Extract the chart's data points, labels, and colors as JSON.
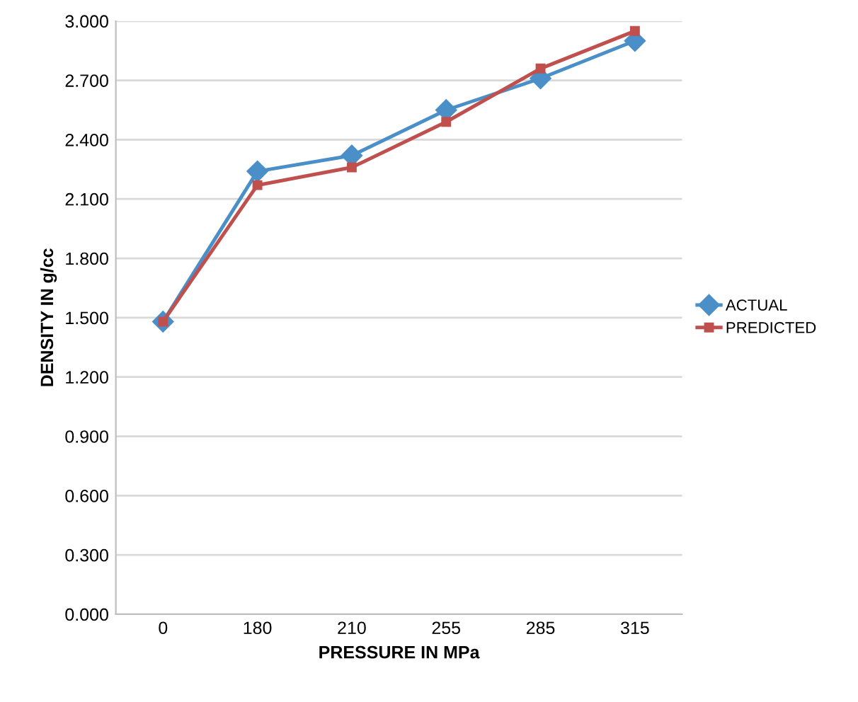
{
  "chart_data": {
    "type": "line",
    "xlabel": "PRESSURE IN MPa",
    "ylabel": "DENSITY IN g/cc",
    "categories": [
      "0",
      "180",
      "210",
      "255",
      "285",
      "315"
    ],
    "series": [
      {
        "name": "ACTUAL",
        "color": "#4a8fc7",
        "values": [
          1.48,
          2.24,
          2.32,
          2.55,
          2.71,
          2.9
        ],
        "marker": "diamond"
      },
      {
        "name": "PREDICTED",
        "color": "#c0504d",
        "values": [
          1.48,
          2.17,
          2.26,
          2.49,
          2.76,
          2.95
        ],
        "marker": "square"
      }
    ],
    "ylim": [
      0,
      3
    ],
    "yticks": [
      {
        "value": 0,
        "label": "0.000"
      },
      {
        "value": 0.3,
        "label": "0.300"
      },
      {
        "value": 0.6,
        "label": "0.600"
      },
      {
        "value": 0.9,
        "label": "0.900"
      },
      {
        "value": 1.2,
        "label": "1.200"
      },
      {
        "value": 1.5,
        "label": "1.500"
      },
      {
        "value": 1.8,
        "label": "1.800"
      },
      {
        "value": 2.1,
        "label": "2.100"
      },
      {
        "value": 2.4,
        "label": "2.400"
      },
      {
        "value": 2.7,
        "label": "2.700"
      },
      {
        "value": 3,
        "label": "3.000"
      }
    ],
    "grid": "y",
    "legend": "right",
    "line_style": "solid"
  }
}
